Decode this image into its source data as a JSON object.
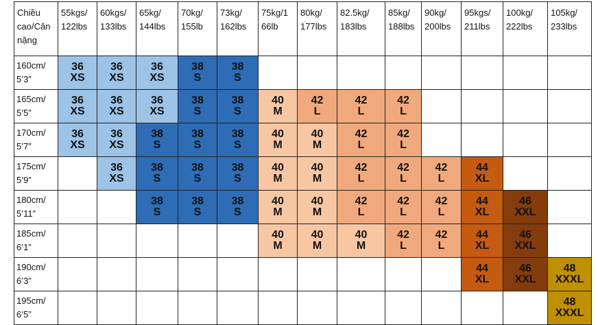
{
  "table": {
    "corner": [
      "Chiều",
      "cao/Cân",
      "nặng"
    ],
    "columns": [
      [
        "55kgs/",
        "122lbs"
      ],
      [
        "60kgs/",
        "133lbs"
      ],
      [
        "65kg/",
        "144lbs"
      ],
      [
        "70kg/",
        "155lb"
      ],
      [
        "73kg/",
        "162lbs"
      ],
      [
        "75kg/1",
        "66lb"
      ],
      [
        "80kg/",
        "177lbs"
      ],
      [
        "82.5kg/",
        "183lbs"
      ],
      [
        "85kg/",
        "188lbs"
      ],
      [
        "90kg/",
        "200lbs"
      ],
      [
        "95kgs/",
        "211lbs"
      ],
      [
        "100kg/",
        "222lbs"
      ],
      [
        "105kg/",
        "233lbs"
      ]
    ],
    "colors": {
      "36": "#9dc3e6",
      "38": "#2e6cb5",
      "40": "#f7c6a3",
      "42": "#f0a97c",
      "44": "#c55a11",
      "46": "#843c0c",
      "48": "#bf9000"
    },
    "rows": [
      {
        "height": [
          "160cm/",
          "5’3”"
        ],
        "cells": [
          {
            "size": "36",
            "label": "XS"
          },
          {
            "size": "36",
            "label": "XS"
          },
          {
            "size": "36",
            "label": "XS"
          },
          {
            "size": "38",
            "label": "S"
          },
          {
            "size": "38",
            "label": "S"
          },
          null,
          null,
          null,
          null,
          null,
          null,
          null,
          null
        ]
      },
      {
        "height": [
          "165cm/",
          "5’5”"
        ],
        "cells": [
          {
            "size": "36",
            "label": "XS"
          },
          {
            "size": "36",
            "label": "XS"
          },
          {
            "size": "36",
            "label": "XS"
          },
          {
            "size": "38",
            "label": "S"
          },
          {
            "size": "38",
            "label": "S"
          },
          {
            "size": "40",
            "label": "M"
          },
          {
            "size": "42",
            "label": "L"
          },
          {
            "size": "42",
            "label": "L"
          },
          {
            "size": "42",
            "label": "L"
          },
          null,
          null,
          null,
          null
        ]
      },
      {
        "height": [
          "170cm/",
          "5’7”"
        ],
        "cells": [
          {
            "size": "36",
            "label": "XS"
          },
          {
            "size": "36",
            "label": "XS"
          },
          {
            "size": "38",
            "label": "S"
          },
          {
            "size": "38",
            "label": "S"
          },
          {
            "size": "38",
            "label": "S"
          },
          {
            "size": "40",
            "label": "M"
          },
          {
            "size": "40",
            "label": "M"
          },
          {
            "size": "42",
            "label": "L"
          },
          {
            "size": "42",
            "label": "L"
          },
          null,
          null,
          null,
          null
        ]
      },
      {
        "height": [
          "175cm/",
          "5’9”"
        ],
        "cells": [
          null,
          {
            "size": "36",
            "label": "XS"
          },
          {
            "size": "38",
            "label": "S"
          },
          {
            "size": "38",
            "label": "S"
          },
          {
            "size": "38",
            "label": "S"
          },
          {
            "size": "40",
            "label": "M"
          },
          {
            "size": "40",
            "label": "M"
          },
          {
            "size": "42",
            "label": "L"
          },
          {
            "size": "42",
            "label": "L"
          },
          {
            "size": "42",
            "label": "L"
          },
          {
            "size": "44",
            "label": "XL"
          },
          null,
          null
        ]
      },
      {
        "height": [
          "180cm/",
          "5’11”"
        ],
        "cells": [
          null,
          null,
          {
            "size": "38",
            "label": "S"
          },
          {
            "size": "38",
            "label": "S"
          },
          {
            "size": "38",
            "label": "S"
          },
          {
            "size": "40",
            "label": "M"
          },
          {
            "size": "40",
            "label": "M"
          },
          {
            "size": "42",
            "label": "L"
          },
          {
            "size": "42",
            "label": "L"
          },
          {
            "size": "42",
            "label": "L"
          },
          {
            "size": "44",
            "label": "XL"
          },
          {
            "size": "46",
            "label": "XXL"
          },
          null
        ]
      },
      {
        "height": [
          "185cm/",
          "6’1”"
        ],
        "cells": [
          null,
          null,
          null,
          null,
          null,
          {
            "size": "40",
            "label": "M"
          },
          {
            "size": "40",
            "label": "M"
          },
          {
            "size": "40",
            "label": "M"
          },
          {
            "size": "42",
            "label": "L"
          },
          {
            "size": "42",
            "label": "L"
          },
          {
            "size": "44",
            "label": "XL"
          },
          {
            "size": "46",
            "label": "XXL"
          },
          null
        ]
      },
      {
        "height": [
          "190cm/",
          "6’3”"
        ],
        "cells": [
          null,
          null,
          null,
          null,
          null,
          null,
          null,
          null,
          null,
          null,
          {
            "size": "44",
            "label": "XL"
          },
          {
            "size": "46",
            "label": "XXL"
          },
          {
            "size": "48",
            "label": "XXXL"
          }
        ]
      },
      {
        "height": [
          "195cm/",
          "6’5”"
        ],
        "cells": [
          null,
          null,
          null,
          null,
          null,
          null,
          null,
          null,
          null,
          null,
          null,
          null,
          {
            "size": "48",
            "label": "XXXL"
          }
        ]
      }
    ]
  }
}
